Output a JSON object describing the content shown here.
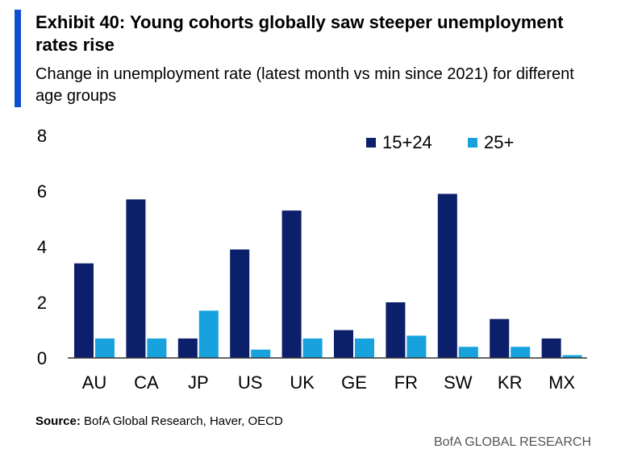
{
  "title": "Exhibit 40: Young cohorts globally saw steeper unemployment rates rise",
  "subtitle": "Change in unemployment rate (latest month vs min since 2021) for different age groups",
  "source_label": "Source:",
  "source_text": " BofA Global Research, Haver, OECD",
  "brand": "BofA GLOBAL RESEARCH",
  "colors": {
    "series1": "#0b1f6b",
    "series2": "#17a2de",
    "accent": "#0e4fd1",
    "axis": "#333333"
  },
  "chart_data": {
    "type": "bar",
    "title": "Exhibit 40: Young cohorts globally saw steeper unemployment rates rise",
    "xlabel": "",
    "ylabel": "",
    "ylim": [
      0,
      8
    ],
    "yticks": [
      0,
      2,
      4,
      6,
      8
    ],
    "categories": [
      "AU",
      "CA",
      "JP",
      "US",
      "UK",
      "GE",
      "FR",
      "SW",
      "KR",
      "MX"
    ],
    "series": [
      {
        "name": "15+24",
        "values": [
          3.4,
          5.7,
          0.7,
          3.9,
          5.3,
          1.0,
          2.0,
          5.9,
          1.4,
          0.7
        ]
      },
      {
        "name": "25+",
        "values": [
          0.7,
          0.7,
          1.7,
          0.3,
          0.7,
          0.7,
          0.8,
          0.4,
          0.4,
          0.1
        ]
      }
    ],
    "legend": "top-right",
    "grid": false
  }
}
